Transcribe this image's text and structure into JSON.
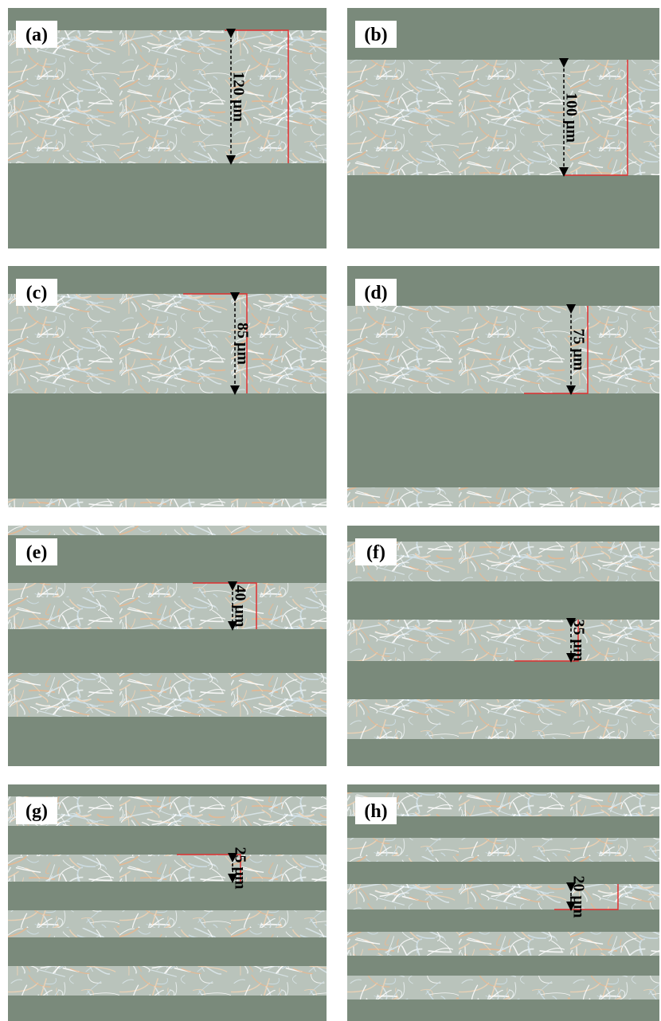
{
  "panels": [
    {
      "label": "(a)",
      "measurement": "120 μm"
    },
    {
      "label": "(b)",
      "measurement": "100 μm"
    },
    {
      "label": "(c)",
      "measurement": "85 μm"
    },
    {
      "label": "(d)",
      "measurement": "75 μm"
    },
    {
      "label": "(e)",
      "measurement": "40 μm"
    },
    {
      "label": "(f)",
      "measurement": "35 μm"
    },
    {
      "label": "(g)",
      "measurement": "25 μm"
    },
    {
      "label": "(h)",
      "measurement": "20 μm"
    }
  ]
}
